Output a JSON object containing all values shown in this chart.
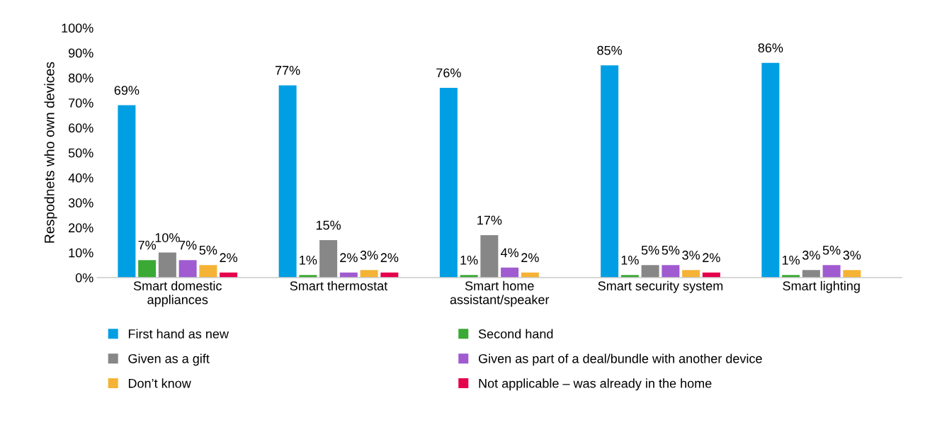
{
  "chart_data": {
    "type": "bar",
    "ylabel": "Respodnets who own devices",
    "categories": [
      "Smart domestic\nappliances",
      "Smart thermostat",
      "Smart home\nassistant/speaker",
      "Smart security system",
      "Smart lighting"
    ],
    "series": [
      {
        "name": "First hand as new",
        "color": "#009fe3",
        "values": [
          69,
          77,
          76,
          85,
          86
        ],
        "value_labels": [
          "69%",
          "77%",
          "76%",
          "85%",
          "86%"
        ]
      },
      {
        "name": "Second hand",
        "color": "#3aaa35",
        "values": [
          7,
          1,
          1,
          1,
          1
        ],
        "value_labels": [
          "7%",
          "1%",
          "1%",
          "1%",
          "1%"
        ]
      },
      {
        "name": "Given as a gift",
        "color": "#878787",
        "values": [
          10,
          15,
          17,
          5,
          3
        ],
        "value_labels": [
          "10%",
          "15%",
          "17%",
          "5%",
          "3%"
        ]
      },
      {
        "name": "Given as part of a deal/bundle with another device",
        "color": "#a05bd0",
        "values": [
          7,
          2,
          4,
          5,
          5
        ],
        "value_labels": [
          "7%",
          "2%",
          "4%",
          "5%",
          "5%"
        ]
      },
      {
        "name": "Don’t know",
        "color": "#f5b335",
        "values": [
          5,
          3,
          2,
          3,
          3
        ],
        "value_labels": [
          "5%",
          "3%",
          "2%",
          "3%",
          "3%"
        ]
      },
      {
        "name": "Not applicable – was already in the home",
        "color": "#e6004c",
        "values": [
          2,
          2,
          null,
          2,
          null
        ],
        "value_labels": [
          "2%",
          "2%",
          null,
          "2%",
          null
        ]
      }
    ],
    "ylim": [
      0,
      100
    ],
    "yticks": [
      {
        "value": 0,
        "label": "0%"
      },
      {
        "value": 10,
        "label": "10%"
      },
      {
        "value": 20,
        "label": "20%"
      },
      {
        "value": 30,
        "label": "30%"
      },
      {
        "value": 40,
        "label": "40%"
      },
      {
        "value": 50,
        "label": "50%"
      },
      {
        "value": 60,
        "label": "60%"
      },
      {
        "value": 70,
        "label": "70%"
      },
      {
        "value": 80,
        "label": "80%"
      },
      {
        "value": 90,
        "label": "90%"
      },
      {
        "value": 100,
        "label": "100%"
      }
    ],
    "grid": false,
    "legend": "bottom"
  }
}
